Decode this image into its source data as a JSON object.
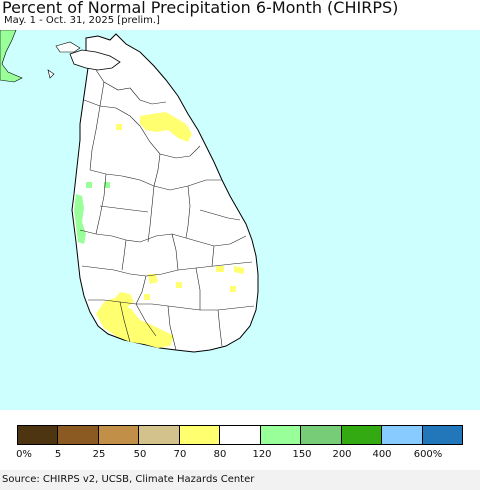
{
  "header": {
    "title": "Percent of Normal Precipitation 6-Month (CHIRPS)",
    "subtitle": "May. 1 - Oct. 31, 2025 [prelim.]"
  },
  "map": {
    "ocean_color": "#cdffff",
    "land_color": "#ffffff",
    "boundary_color": "#000000",
    "region": "Sri Lanka"
  },
  "legend": {
    "colors": [
      "#4d3511",
      "#8b5a22",
      "#c18f47",
      "#d3c28b",
      "#ffff70",
      "#ffffff",
      "#99ff99",
      "#77cc77",
      "#33aa11",
      "#88ccff",
      "#2277bb"
    ],
    "labels": [
      "0%",
      "5",
      "25",
      "50",
      "70",
      "80",
      "120",
      "150",
      "200",
      "400",
      "600%"
    ]
  },
  "footer": {
    "source": "Source: CHIRPS v2, UCSB, Climate Hazards Center"
  }
}
